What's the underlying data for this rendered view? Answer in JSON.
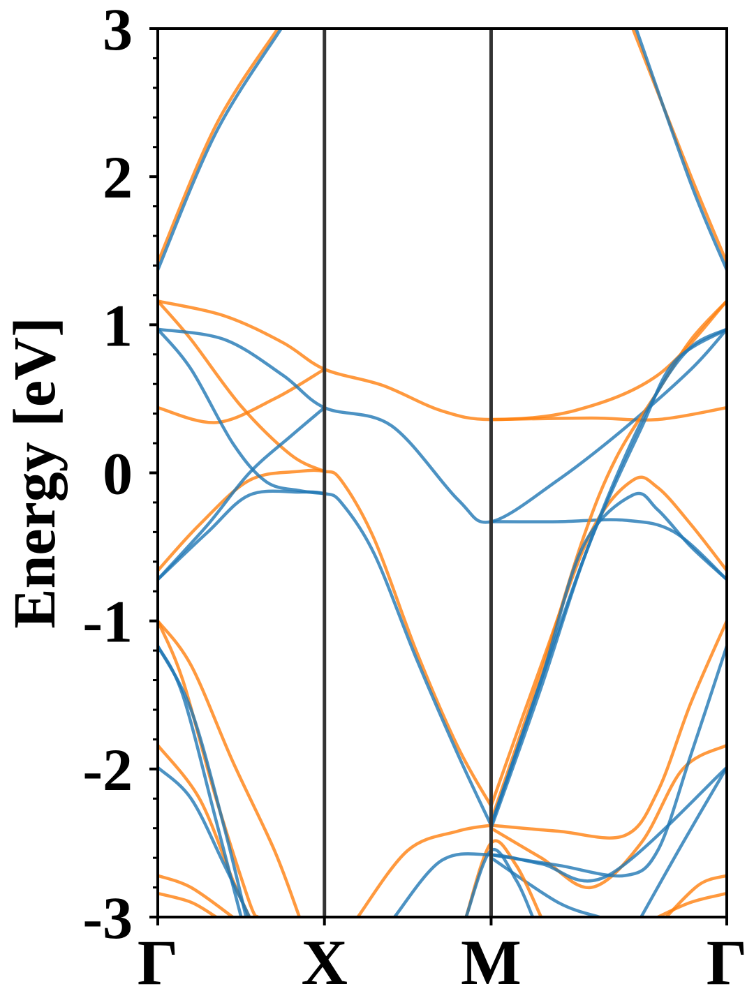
{
  "chart_data": {
    "type": "line",
    "title": "",
    "xlabel": "",
    "ylabel": "Energy [eV]",
    "ylim": [
      -3,
      3
    ],
    "yticks": [
      "-3",
      "-2",
      "-1",
      "0",
      "1",
      "2",
      "3"
    ],
    "xlim": [
      0,
      3.414
    ],
    "high_symmetry_points": [
      {
        "label": "Γ",
        "k": 0
      },
      {
        "label": "X",
        "k": 1
      },
      {
        "label": "M",
        "k": 2
      },
      {
        "label": "Γ",
        "k": 3.414
      }
    ],
    "grid": false,
    "legend": "none",
    "colors": {
      "blue": "#1f77b4",
      "orange": "#ff7f0e",
      "vline": "#333333"
    },
    "series": [
      {
        "color": "orange",
        "points": [
          [
            0,
            1.42
          ],
          [
            0.35,
            2.35
          ],
          [
            0.72,
            3.0
          ]
        ]
      },
      {
        "color": "blue",
        "points": [
          [
            0,
            1.37
          ],
          [
            0.35,
            2.3
          ],
          [
            0.74,
            3.0
          ]
        ]
      },
      {
        "color": "orange",
        "points": [
          [
            2.85,
            3.0
          ],
          [
            3.2,
            2.0
          ],
          [
            3.414,
            1.42
          ]
        ]
      },
      {
        "color": "blue",
        "points": [
          [
            2.87,
            3.0
          ],
          [
            3.2,
            1.95
          ],
          [
            3.414,
            1.37
          ]
        ]
      },
      {
        "color": "orange",
        "points": [
          [
            0,
            1.16
          ],
          [
            0.4,
            1.06
          ],
          [
            0.75,
            0.88
          ],
          [
            1.0,
            0.7
          ],
          [
            1.35,
            0.59
          ],
          [
            1.7,
            0.42
          ],
          [
            2.0,
            0.36
          ],
          [
            2.5,
            0.42
          ],
          [
            3.0,
            0.66
          ],
          [
            3.414,
            1.16
          ]
        ]
      },
      {
        "color": "orange",
        "points": [
          [
            0,
            1.16
          ],
          [
            0.2,
            0.9
          ],
          [
            0.5,
            0.45
          ],
          [
            0.8,
            0.12
          ],
          [
            1.0,
            0.01
          ]
        ]
      },
      {
        "color": "orange",
        "points": [
          [
            0,
            0.44
          ],
          [
            0.35,
            0.34
          ],
          [
            0.7,
            0.5
          ],
          [
            1.0,
            0.7
          ]
        ]
      },
      {
        "color": "orange",
        "points": [
          [
            2.0,
            0.36
          ],
          [
            2.6,
            0.37
          ],
          [
            3.0,
            0.36
          ],
          [
            3.414,
            0.44
          ]
        ]
      },
      {
        "color": "orange",
        "points": [
          [
            0,
            -0.66
          ],
          [
            0.25,
            -0.35
          ],
          [
            0.55,
            -0.05
          ],
          [
            0.85,
            0.01
          ],
          [
            1.0,
            0.01
          ],
          [
            1.1,
            -0.05
          ],
          [
            1.3,
            -0.45
          ],
          [
            1.55,
            -1.2
          ],
          [
            1.8,
            -1.85
          ],
          [
            2.0,
            -2.25
          ]
        ]
      },
      {
        "color": "blue",
        "points": [
          [
            0,
            0.97
          ],
          [
            0.4,
            0.9
          ],
          [
            0.75,
            0.66
          ],
          [
            1.0,
            0.44
          ],
          [
            1.4,
            0.32
          ],
          [
            1.8,
            -0.18
          ],
          [
            2.0,
            -0.33
          ],
          [
            2.4,
            -0.05
          ],
          [
            2.8,
            0.3
          ],
          [
            3.2,
            0.7
          ],
          [
            3.414,
            0.97
          ]
        ]
      },
      {
        "color": "blue",
        "points": [
          [
            0,
            0.97
          ],
          [
            0.2,
            0.7
          ],
          [
            0.45,
            0.2
          ],
          [
            0.65,
            -0.06
          ],
          [
            0.85,
            -0.12
          ],
          [
            1.0,
            -0.14
          ]
        ]
      },
      {
        "color": "blue",
        "points": [
          [
            0,
            -0.72
          ],
          [
            0.3,
            -0.35
          ],
          [
            0.55,
            0.0
          ],
          [
            0.8,
            0.25
          ],
          [
            1.0,
            0.44
          ]
        ]
      },
      {
        "color": "blue",
        "points": [
          [
            0,
            -0.72
          ],
          [
            0.3,
            -0.4
          ],
          [
            0.55,
            -0.15
          ],
          [
            0.85,
            -0.13
          ],
          [
            1.0,
            -0.14
          ],
          [
            1.1,
            -0.2
          ],
          [
            1.3,
            -0.55
          ],
          [
            1.55,
            -1.25
          ],
          [
            1.8,
            -1.9
          ],
          [
            2.0,
            -2.38
          ]
        ]
      },
      {
        "color": "blue",
        "points": [
          [
            2.0,
            -0.33
          ],
          [
            2.4,
            -0.33
          ],
          [
            2.8,
            -0.32
          ],
          [
            3.1,
            -0.4
          ],
          [
            3.414,
            -0.72
          ]
        ]
      },
      {
        "color": "orange",
        "points": [
          [
            2.0,
            -2.25
          ],
          [
            2.3,
            -1.3
          ],
          [
            2.6,
            -0.4
          ],
          [
            2.85,
            -0.05
          ],
          [
            3.0,
            -0.1
          ],
          [
            3.2,
            -0.35
          ],
          [
            3.414,
            -0.66
          ]
        ]
      },
      {
        "color": "orange",
        "points": [
          [
            2.0,
            -2.35
          ],
          [
            2.3,
            -1.35
          ],
          [
            2.55,
            -0.45
          ],
          [
            2.75,
            0.1
          ],
          [
            3.0,
            0.55
          ],
          [
            3.2,
            0.9
          ],
          [
            3.414,
            1.16
          ]
        ]
      },
      {
        "color": "orange",
        "points": [
          [
            2.0,
            -2.38
          ],
          [
            2.4,
            -2.42
          ],
          [
            2.8,
            -2.45
          ],
          [
            3.0,
            -2.15
          ],
          [
            3.2,
            -1.55
          ],
          [
            3.414,
            -1.0
          ]
        ]
      },
      {
        "color": "orange",
        "points": [
          [
            2.0,
            -2.4
          ],
          [
            2.3,
            -2.6
          ],
          [
            2.6,
            -2.8
          ],
          [
            2.9,
            -2.5
          ],
          [
            3.15,
            -2.0
          ],
          [
            3.414,
            -1.84
          ]
        ]
      },
      {
        "color": "blue",
        "points": [
          [
            2.0,
            -2.38
          ],
          [
            2.3,
            -1.4
          ],
          [
            2.55,
            -0.5
          ],
          [
            2.85,
            -0.15
          ],
          [
            3.0,
            -0.25
          ],
          [
            3.2,
            -0.5
          ],
          [
            3.414,
            -0.72
          ]
        ]
      },
      {
        "color": "blue",
        "points": [
          [
            2.0,
            -2.4
          ],
          [
            2.3,
            -1.45
          ],
          [
            2.55,
            -0.6
          ],
          [
            2.8,
            0.1
          ],
          [
            3.0,
            0.55
          ],
          [
            3.2,
            0.85
          ],
          [
            3.414,
            0.97
          ]
        ]
      },
      {
        "color": "blue",
        "points": [
          [
            2.0,
            -2.38
          ],
          [
            2.3,
            -1.4
          ],
          [
            2.6,
            -0.45
          ],
          [
            2.9,
            0.3
          ],
          [
            3.1,
            0.75
          ],
          [
            3.414,
            0.97
          ]
        ]
      },
      {
        "color": "blue",
        "points": [
          [
            2.0,
            -2.58
          ],
          [
            2.4,
            -2.65
          ],
          [
            2.8,
            -2.72
          ],
          [
            3.0,
            -2.55
          ],
          [
            3.2,
            -1.9
          ],
          [
            3.414,
            -1.17
          ]
        ]
      },
      {
        "color": "blue",
        "points": [
          [
            2.0,
            -2.6
          ],
          [
            2.4,
            -2.9
          ],
          [
            2.65,
            -3.0
          ]
        ]
      },
      {
        "color": "blue",
        "points": [
          [
            2.9,
            -3.0
          ],
          [
            3.15,
            -2.5
          ],
          [
            3.414,
            -1.99
          ]
        ]
      },
      {
        "color": "orange",
        "points": [
          [
            0,
            -1.0
          ],
          [
            0.2,
            -1.3
          ],
          [
            0.45,
            -1.95
          ],
          [
            0.7,
            -2.55
          ],
          [
            0.85,
            -3.0
          ]
        ]
      },
      {
        "color": "orange",
        "points": [
          [
            0,
            -1.0
          ],
          [
            0.15,
            -1.4
          ],
          [
            0.35,
            -2.2
          ],
          [
            0.55,
            -2.9
          ],
          [
            0.6,
            -3.0
          ]
        ]
      },
      {
        "color": "orange",
        "points": [
          [
            0,
            -1.84
          ],
          [
            0.25,
            -2.2
          ],
          [
            0.45,
            -2.75
          ],
          [
            0.55,
            -3.0
          ]
        ]
      },
      {
        "color": "orange",
        "points": [
          [
            0,
            -2.72
          ],
          [
            0.2,
            -2.8
          ],
          [
            0.45,
            -3.0
          ]
        ]
      },
      {
        "color": "orange",
        "points": [
          [
            0,
            -2.84
          ],
          [
            0.2,
            -2.9
          ],
          [
            0.35,
            -3.0
          ]
        ]
      },
      {
        "color": "orange",
        "points": [
          [
            1.2,
            -3.0
          ],
          [
            1.5,
            -2.55
          ],
          [
            1.8,
            -2.42
          ],
          [
            2.0,
            -2.38
          ]
        ]
      },
      {
        "color": "orange",
        "points": [
          [
            1.85,
            -3.0
          ],
          [
            2.0,
            -2.5
          ],
          [
            2.15,
            -2.65
          ],
          [
            2.3,
            -3.0
          ]
        ]
      },
      {
        "color": "orange",
        "points": [
          [
            3.0,
            -3.0
          ],
          [
            3.2,
            -2.9
          ],
          [
            3.414,
            -2.84
          ]
        ]
      },
      {
        "color": "orange",
        "points": [
          [
            3.05,
            -3.0
          ],
          [
            3.25,
            -2.78
          ],
          [
            3.414,
            -2.72
          ]
        ]
      },
      {
        "color": "blue",
        "points": [
          [
            0,
            -1.17
          ],
          [
            0.15,
            -1.5
          ],
          [
            0.35,
            -2.35
          ],
          [
            0.5,
            -3.0
          ]
        ]
      },
      {
        "color": "blue",
        "points": [
          [
            0,
            -1.17
          ],
          [
            0.2,
            -1.6
          ],
          [
            0.4,
            -2.4
          ],
          [
            0.53,
            -3.0
          ]
        ]
      },
      {
        "color": "blue",
        "points": [
          [
            0,
            -1.99
          ],
          [
            0.2,
            -2.2
          ],
          [
            0.4,
            -2.65
          ],
          [
            0.55,
            -3.0
          ]
        ]
      },
      {
        "color": "blue",
        "points": [
          [
            1.42,
            -3.0
          ],
          [
            1.7,
            -2.62
          ],
          [
            2.0,
            -2.58
          ],
          [
            2.3,
            -2.64
          ],
          [
            2.7,
            -2.72
          ],
          [
            3.414,
            -1.99
          ]
        ]
      },
      {
        "color": "blue",
        "points": [
          [
            1.85,
            -3.0
          ],
          [
            2.0,
            -2.55
          ],
          [
            2.15,
            -2.75
          ],
          [
            2.25,
            -3.0
          ]
        ]
      }
    ]
  }
}
